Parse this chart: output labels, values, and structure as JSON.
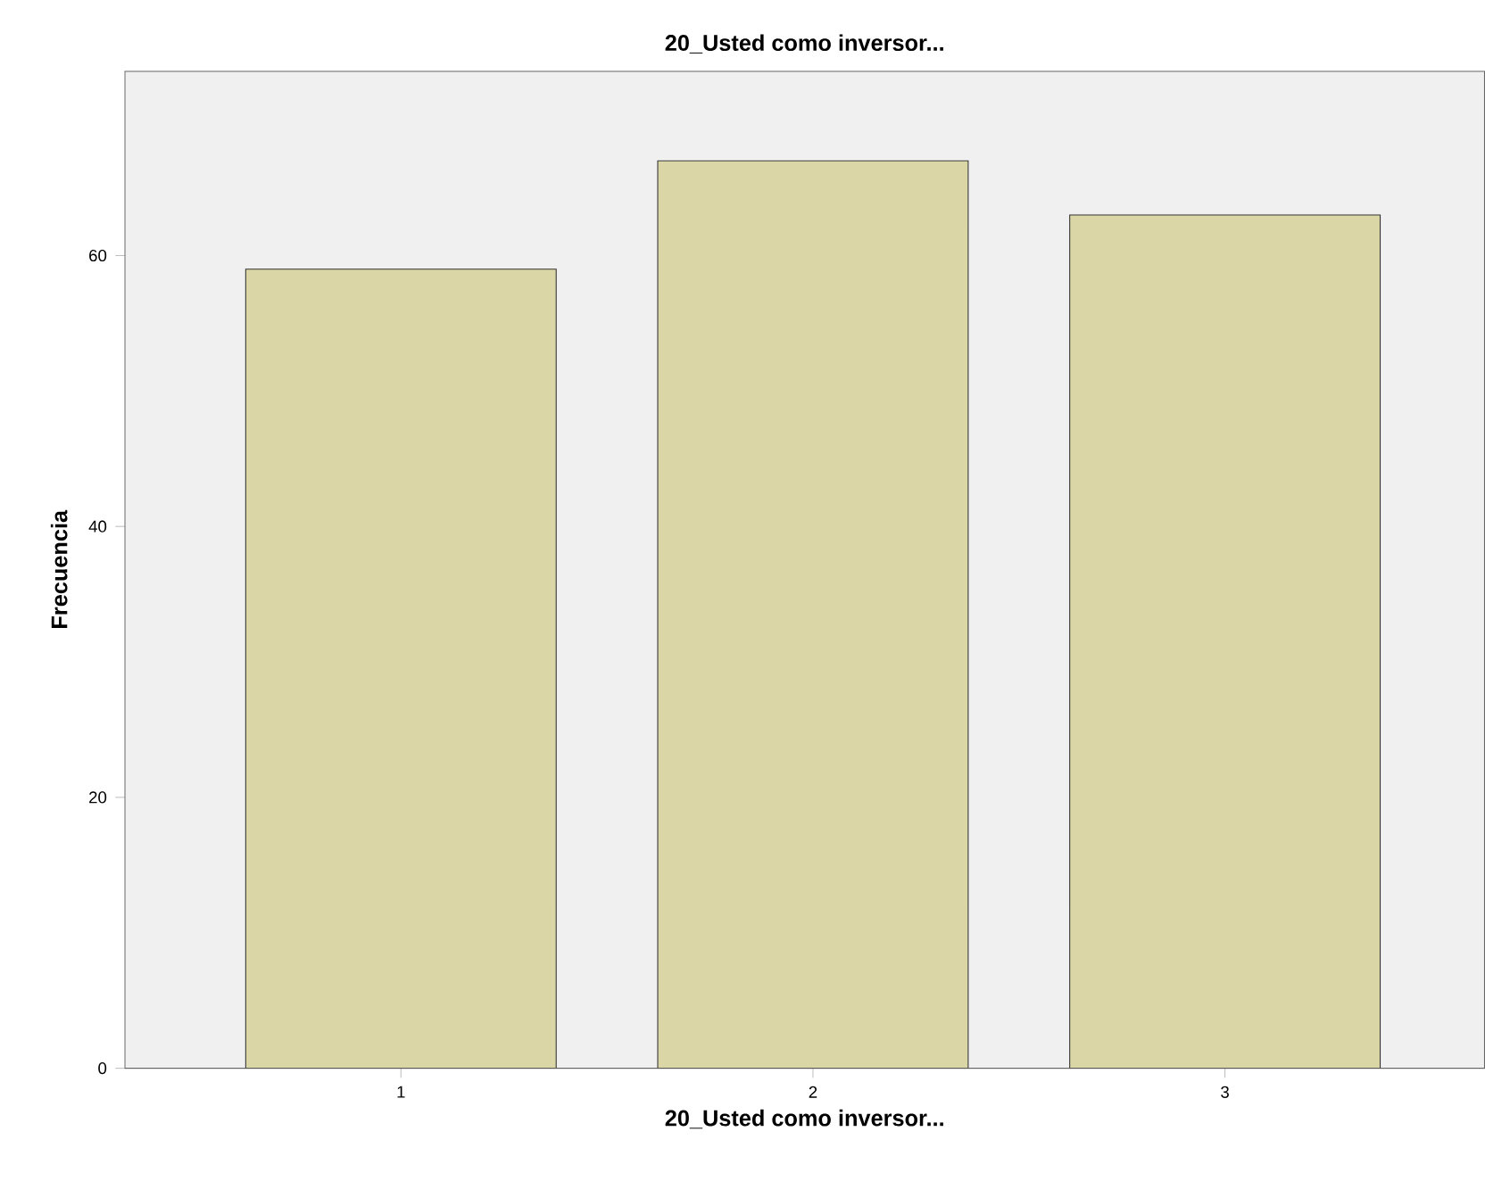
{
  "chart_data": {
    "type": "bar",
    "title": "20_Usted como inversor...",
    "xlabel": "20_Usted como inversor...",
    "ylabel": "Frecuencia",
    "categories": [
      "1",
      "2",
      "3"
    ],
    "values": [
      59,
      67,
      63
    ],
    "color": "#dad6a6",
    "ylim": [
      0,
      73.6
    ],
    "yticks": [
      0,
      20,
      40,
      60
    ]
  }
}
